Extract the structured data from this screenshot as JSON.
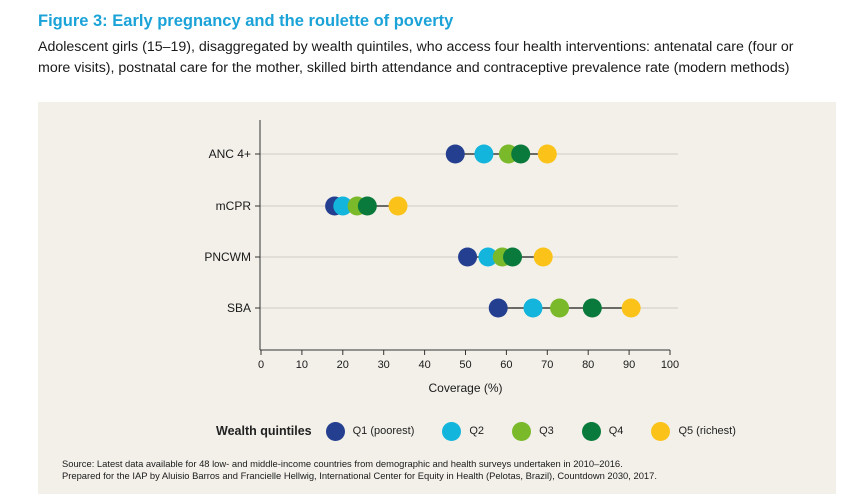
{
  "figure": {
    "title": "Figure 3: Early pregnancy and the roulette of poverty",
    "subtitle": "Adolescent girls (15–19), disaggregated by wealth quintiles, who access four health interventions: antenatal care (four or more visits), postnatal care for the mother, skilled birth attendance and contraceptive prevalence rate (modern methods)"
  },
  "legend": {
    "title": "Wealth quintiles"
  },
  "source": {
    "line1": "Source: Latest data available for 48 low- and middle-income countries from demographic and health surveys undertaken in 2010–2016.",
    "line2": "Prepared for the IAP by Aluisio Barros and Francielle Hellwig, International Center for Equity in Health (Pelotas, Brazil), Countdown 2030, 2017."
  },
  "colors": {
    "title": "#1ba3d8",
    "panel_bg": "#f2f0e9",
    "connector": "#1a1a1a"
  },
  "chart_data": {
    "type": "scatter",
    "subtype": "dot-plot",
    "categories": [
      "ANC 4+",
      "mCPR",
      "PNCWM",
      "SBA"
    ],
    "xlabel": "Coverage (%)",
    "ylabel": "",
    "xlim": [
      0,
      100
    ],
    "xticks": [
      0,
      10,
      20,
      30,
      40,
      50,
      60,
      70,
      80,
      90,
      100
    ],
    "grid": "horizontal",
    "series": [
      {
        "name": "Q1 (poorest)",
        "color": "#243f8f",
        "values": [
          47.5,
          18,
          50.5,
          58
        ]
      },
      {
        "name": "Q2",
        "color": "#13b5dc",
        "values": [
          54.5,
          20,
          55.5,
          66.5
        ]
      },
      {
        "name": "Q3",
        "color": "#7ab929",
        "values": [
          60.5,
          23.5,
          59,
          73
        ]
      },
      {
        "name": "Q4",
        "color": "#0a7a3c",
        "values": [
          63.5,
          26,
          61.5,
          81
        ]
      },
      {
        "name": "Q5 (richest)",
        "color": "#fbc31a",
        "values": [
          70,
          33.5,
          69,
          90.5
        ]
      }
    ]
  }
}
